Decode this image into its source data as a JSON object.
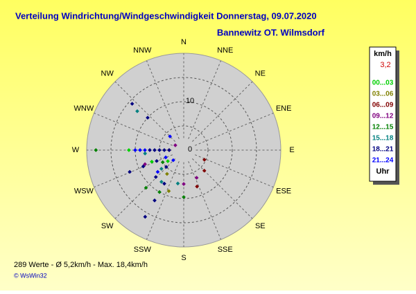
{
  "chart_data": {
    "type": "polar-scatter",
    "title": "Verteilung Windrichtung/Windgeschwindigkeit  Donnerstag, 09.07.2020",
    "subtitle": "Bannewitz OT. Wilmsdorf",
    "categories": [
      "N",
      "NNE",
      "NE",
      "ENE",
      "E",
      "ESE",
      "SE",
      "SSE",
      "S",
      "SSW",
      "SW",
      "WSW",
      "W",
      "WNW",
      "NW",
      "NNW"
    ],
    "rlim": [
      0,
      20
    ],
    "rticks": [
      0,
      10
    ],
    "rgrid": [
      5,
      10,
      15
    ],
    "legend_title": "km/h",
    "current_value": "3,2",
    "legend_footer": "Uhr",
    "series": [
      {
        "name": "00...03",
        "color": "#00d000",
        "x": [
          270,
          250,
          235
        ],
        "values": [
          11.3,
          7,
          4
        ]
      },
      {
        "name": "03...06",
        "color": "#808000",
        "x": [
          215,
          200
        ],
        "values": [
          6,
          9
        ]
      },
      {
        "name": "06...09",
        "color": "#800000",
        "x": [
          115,
          135,
          160,
          270
        ],
        "values": [
          4.7,
          6,
          8,
          3
        ]
      },
      {
        "name": "09...12",
        "color": "#800080",
        "x": [
          155,
          180,
          250,
          300
        ],
        "values": [
          6.3,
          7,
          8.5,
          2
        ]
      },
      {
        "name": "12...15",
        "color": "#008000",
        "x": [
          270,
          180,
          225,
          210,
          240
        ],
        "values": [
          18.1,
          9.7,
          11,
          10,
          5
        ]
      },
      {
        "name": "15...18",
        "color": "#008080",
        "x": [
          310,
          265,
          215,
          230,
          190
        ],
        "values": [
          12.5,
          8,
          8,
          6,
          7
        ]
      },
      {
        "name": "18...21",
        "color": "#000080",
        "x": [
          270,
          270,
          270,
          270,
          270,
          248,
          248,
          248,
          226,
          226,
          210,
          210,
          210,
          312,
          312
        ],
        "values": [
          3,
          4,
          5,
          6,
          7,
          6,
          9,
          12,
          5,
          8,
          8,
          12,
          15.9,
          10,
          14.3
        ]
      },
      {
        "name": "21...24",
        "color": "#0000ff",
        "x": [
          270,
          270,
          270,
          248,
          226,
          230,
          315
        ],
        "values": [
          8,
          9,
          10,
          4,
          3,
          7,
          4
        ]
      }
    ],
    "footer": "289 Werte   -   Ø 5,2km/h   -   Max. 18,4km/h",
    "copyright": "© WsWin32"
  }
}
